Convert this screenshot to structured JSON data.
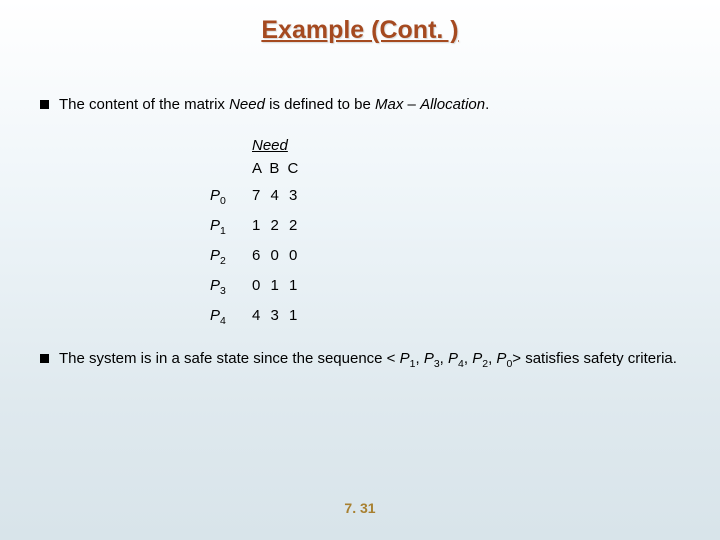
{
  "title": "Example (Cont. )",
  "title_color": "#a54a20",
  "bullet1_pre": "The content of the matrix ",
  "bullet1_need": "Need",
  "bullet1_mid": " is defined to be ",
  "bullet1_max": "Max",
  "bullet1_dash": " – ",
  "bullet1_alloc": "Allocation",
  "bullet1_post": ".",
  "table": {
    "header_underlined": "Need",
    "cols": "A B C",
    "rows": [
      {
        "label_p": "P",
        "label_i": "0",
        "vals": "7 4 3"
      },
      {
        "label_p": "P",
        "label_i": "1",
        "vals": "1 2 2"
      },
      {
        "label_p": "P",
        "label_i": "2",
        "vals": "6 0 0"
      },
      {
        "label_p": "P",
        "label_i": "3",
        "vals": "0 1 1"
      },
      {
        "label_p": "P",
        "label_i": "4",
        "vals": "4 3 1"
      }
    ]
  },
  "bullet2_pre": "The system is in a safe state since the sequence < ",
  "seq": [
    {
      "p": "P",
      "i": "1"
    },
    {
      "p": "P",
      "i": "3"
    },
    {
      "p": "P",
      "i": "4"
    },
    {
      "p": "P",
      "i": "2"
    },
    {
      "p": "P",
      "i": "0"
    }
  ],
  "seq_sep": ", ",
  "bullet2_post": "> satisfies safety criteria.",
  "footer": "7. 31",
  "footer_color": "#a88030"
}
